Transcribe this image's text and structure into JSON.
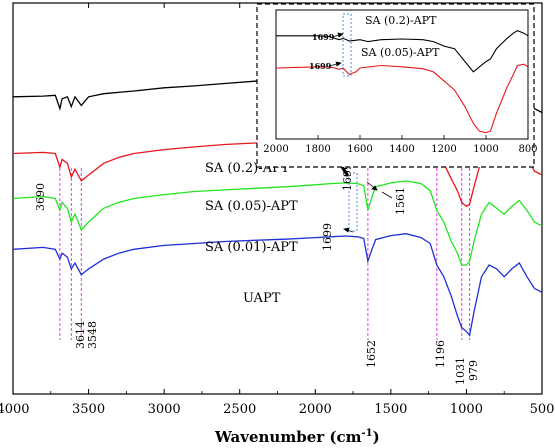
{
  "chart_data": [
    {
      "type": "line",
      "role": "main",
      "xlabel": "Wavenumber (cm⁻¹)",
      "xlim": [
        4000,
        500
      ],
      "xticks": [
        4000,
        3500,
        3000,
        2500,
        2000,
        1500,
        1000,
        500
      ],
      "yticks_shown": false,
      "series": [
        {
          "name": "SA (0.2)-APT",
          "color": "#000000",
          "points": [
            [
              4000,
              0.76
            ],
            [
              3800,
              0.762
            ],
            [
              3720,
              0.764
            ],
            [
              3690,
              0.73
            ],
            [
              3675,
              0.755
            ],
            [
              3640,
              0.76
            ],
            [
              3614,
              0.735
            ],
            [
              3590,
              0.76
            ],
            [
              3548,
              0.738
            ],
            [
              3500,
              0.76
            ],
            [
              3400,
              0.768
            ],
            [
              3200,
              0.775
            ],
            [
              3000,
              0.783
            ],
            [
              2800,
              0.788
            ],
            [
              2600,
              0.794
            ],
            [
              2400,
              0.8
            ],
            [
              2200,
              0.806
            ],
            [
              2000,
              0.815
            ],
            [
              1900,
              0.818
            ],
            [
              1800,
              0.82
            ],
            [
              1720,
              0.815
            ],
            [
              1699,
              0.795
            ],
            [
              1680,
              0.808
            ],
            [
              1652,
              0.79
            ],
            [
              1620,
              0.805
            ],
            [
              1561,
              0.79
            ],
            [
              1500,
              0.8
            ],
            [
              1400,
              0.812
            ],
            [
              1300,
              0.808
            ],
            [
              1240,
              0.8
            ],
            [
              1196,
              0.77
            ],
            [
              1150,
              0.755
            ],
            [
              1100,
              0.72
            ],
            [
              1060,
              0.69
            ],
            [
              1040,
              0.68
            ],
            [
              1031,
              0.685
            ],
            [
              1000,
              0.7
            ],
            [
              979,
              0.705
            ],
            [
              950,
              0.74
            ],
            [
              900,
              0.79
            ],
            [
              850,
              0.798
            ],
            [
              820,
              0.79
            ],
            [
              800,
              0.78
            ],
            [
              750,
              0.77
            ],
            [
              700,
              0.79
            ],
            [
              650,
              0.8
            ],
            [
              600,
              0.77
            ],
            [
              550,
              0.73
            ],
            [
              500,
              0.72
            ]
          ]
        },
        {
          "name": "SA (0.05)-APT",
          "color": "#e8171c",
          "points": [
            [
              4000,
              0.615
            ],
            [
              3800,
              0.618
            ],
            [
              3720,
              0.615
            ],
            [
              3690,
              0.58
            ],
            [
              3675,
              0.6
            ],
            [
              3640,
              0.59
            ],
            [
              3614,
              0.555
            ],
            [
              3590,
              0.575
            ],
            [
              3548,
              0.545
            ],
            [
              3500,
              0.56
            ],
            [
              3400,
              0.59
            ],
            [
              3300,
              0.605
            ],
            [
              3200,
              0.615
            ],
            [
              3000,
              0.625
            ],
            [
              2800,
              0.632
            ],
            [
              2600,
              0.638
            ],
            [
              2400,
              0.642
            ],
            [
              2200,
              0.648
            ],
            [
              2000,
              0.655
            ],
            [
              1900,
              0.66
            ],
            [
              1800,
              0.665
            ],
            [
              1720,
              0.662
            ],
            [
              1699,
              0.655
            ],
            [
              1680,
              0.66
            ],
            [
              1652,
              0.61
            ],
            [
              1620,
              0.64
            ],
            [
              1600,
              0.655
            ],
            [
              1500,
              0.665
            ],
            [
              1400,
              0.672
            ],
            [
              1300,
              0.668
            ],
            [
              1240,
              0.655
            ],
            [
              1196,
              0.61
            ],
            [
              1150,
              0.59
            ],
            [
              1100,
              0.55
            ],
            [
              1060,
              0.52
            ],
            [
              1031,
              0.49
            ],
            [
              1000,
              0.48
            ],
            [
              979,
              0.485
            ],
            [
              950,
              0.53
            ],
            [
              900,
              0.6
            ],
            [
              850,
              0.63
            ],
            [
              800,
              0.62
            ],
            [
              750,
              0.61
            ],
            [
              700,
              0.635
            ],
            [
              650,
              0.64
            ],
            [
              600,
              0.61
            ],
            [
              550,
              0.57
            ],
            [
              500,
              0.56
            ]
          ]
        },
        {
          "name": "SA (0.01)-APT",
          "color": "#22e61f",
          "points": [
            [
              4000,
              0.5
            ],
            [
              3800,
              0.505
            ],
            [
              3720,
              0.5
            ],
            [
              3690,
              0.47
            ],
            [
              3675,
              0.49
            ],
            [
              3640,
              0.475
            ],
            [
              3614,
              0.44
            ],
            [
              3590,
              0.46
            ],
            [
              3548,
              0.42
            ],
            [
              3500,
              0.44
            ],
            [
              3400,
              0.475
            ],
            [
              3300,
              0.49
            ],
            [
              3200,
              0.5
            ],
            [
              3000,
              0.51
            ],
            [
              2800,
              0.518
            ],
            [
              2600,
              0.522
            ],
            [
              2400,
              0.526
            ],
            [
              2200,
              0.53
            ],
            [
              2000,
              0.535
            ],
            [
              1900,
              0.538
            ],
            [
              1800,
              0.54
            ],
            [
              1720,
              0.538
            ],
            [
              1680,
              0.533
            ],
            [
              1652,
              0.47
            ],
            [
              1620,
              0.51
            ],
            [
              1600,
              0.53
            ],
            [
              1500,
              0.54
            ],
            [
              1400,
              0.545
            ],
            [
              1300,
              0.538
            ],
            [
              1240,
              0.52
            ],
            [
              1196,
              0.47
            ],
            [
              1150,
              0.44
            ],
            [
              1100,
              0.39
            ],
            [
              1060,
              0.36
            ],
            [
              1031,
              0.33
            ],
            [
              1000,
              0.33
            ],
            [
              979,
              0.34
            ],
            [
              950,
              0.39
            ],
            [
              900,
              0.46
            ],
            [
              850,
              0.49
            ],
            [
              800,
              0.475
            ],
            [
              750,
              0.46
            ],
            [
              700,
              0.48
            ],
            [
              650,
              0.495
            ],
            [
              600,
              0.47
            ],
            [
              550,
              0.44
            ],
            [
              500,
              0.43
            ]
          ]
        },
        {
          "name": "UAPT",
          "color": "#1f2fd6",
          "points": [
            [
              4000,
              0.37
            ],
            [
              3800,
              0.375
            ],
            [
              3720,
              0.37
            ],
            [
              3690,
              0.345
            ],
            [
              3675,
              0.36
            ],
            [
              3640,
              0.35
            ],
            [
              3614,
              0.32
            ],
            [
              3590,
              0.335
            ],
            [
              3548,
              0.305
            ],
            [
              3500,
              0.32
            ],
            [
              3400,
              0.345
            ],
            [
              3300,
              0.36
            ],
            [
              3200,
              0.37
            ],
            [
              3000,
              0.38
            ],
            [
              2800,
              0.385
            ],
            [
              2600,
              0.39
            ],
            [
              2400,
              0.393
            ],
            [
              2200,
              0.396
            ],
            [
              2000,
              0.4
            ],
            [
              1900,
              0.402
            ],
            [
              1800,
              0.404
            ],
            [
              1720,
              0.402
            ],
            [
              1680,
              0.398
            ],
            [
              1652,
              0.34
            ],
            [
              1620,
              0.375
            ],
            [
              1600,
              0.395
            ],
            [
              1500,
              0.405
            ],
            [
              1400,
              0.41
            ],
            [
              1300,
              0.4
            ],
            [
              1240,
              0.385
            ],
            [
              1196,
              0.33
            ],
            [
              1150,
              0.3
            ],
            [
              1100,
              0.25
            ],
            [
              1060,
              0.2
            ],
            [
              1031,
              0.17
            ],
            [
              1000,
              0.16
            ],
            [
              979,
              0.15
            ],
            [
              950,
              0.21
            ],
            [
              900,
              0.3
            ],
            [
              850,
              0.33
            ],
            [
              800,
              0.32
            ],
            [
              750,
              0.3
            ],
            [
              700,
              0.32
            ],
            [
              650,
              0.335
            ],
            [
              600,
              0.3
            ],
            [
              550,
              0.27
            ],
            [
              500,
              0.26
            ]
          ]
        }
      ],
      "reference_lines": [
        3690,
        3614,
        3548,
        1652,
        1196,
        1031,
        979
      ],
      "annotations": [
        "3690",
        "3614",
        "3548",
        "1699",
        "1699",
        "1561",
        "1652",
        "1196",
        "1031",
        "979"
      ]
    },
    {
      "type": "line",
      "role": "inset",
      "xlim": [
        2000,
        800
      ],
      "xticks": [
        2000,
        1800,
        1600,
        1400,
        1200,
        1000,
        800
      ],
      "series": [
        {
          "name": "SA (0.2)-APT",
          "color": "#000000",
          "points": [
            [
              2000,
              0.8
            ],
            [
              1900,
              0.8
            ],
            [
              1800,
              0.8
            ],
            [
              1750,
              0.795
            ],
            [
              1720,
              0.78
            ],
            [
              1699,
              0.77
            ],
            [
              1680,
              0.78
            ],
            [
              1650,
              0.76
            ],
            [
              1600,
              0.77
            ],
            [
              1561,
              0.755
            ],
            [
              1500,
              0.77
            ],
            [
              1400,
              0.775
            ],
            [
              1300,
              0.77
            ],
            [
              1250,
              0.755
            ],
            [
              1200,
              0.72
            ],
            [
              1150,
              0.7
            ],
            [
              1100,
              0.6
            ],
            [
              1060,
              0.52
            ],
            [
              1031,
              0.56
            ],
            [
              1000,
              0.6
            ],
            [
              979,
              0.62
            ],
            [
              950,
              0.7
            ],
            [
              900,
              0.78
            ],
            [
              870,
              0.82
            ],
            [
              850,
              0.84
            ],
            [
              820,
              0.82
            ],
            [
              800,
              0.8
            ]
          ]
        },
        {
          "name": "SA (0.05)-APT",
          "color": "#e8171c",
          "points": [
            [
              2000,
              0.55
            ],
            [
              1900,
              0.555
            ],
            [
              1800,
              0.56
            ],
            [
              1750,
              0.557
            ],
            [
              1720,
              0.55
            ],
            [
              1699,
              0.54
            ],
            [
              1680,
              0.55
            ],
            [
              1652,
              0.5
            ],
            [
              1620,
              0.52
            ],
            [
              1600,
              0.55
            ],
            [
              1500,
              0.57
            ],
            [
              1400,
              0.56
            ],
            [
              1300,
              0.545
            ],
            [
              1250,
              0.52
            ],
            [
              1200,
              0.45
            ],
            [
              1150,
              0.38
            ],
            [
              1100,
              0.25
            ],
            [
              1060,
              0.12
            ],
            [
              1031,
              0.06
            ],
            [
              1000,
              0.05
            ],
            [
              979,
              0.06
            ],
            [
              950,
              0.2
            ],
            [
              900,
              0.4
            ],
            [
              870,
              0.5
            ],
            [
              850,
              0.57
            ],
            [
              820,
              0.58
            ],
            [
              800,
              0.56
            ]
          ]
        }
      ],
      "annotations": [
        "1699",
        "1699"
      ]
    }
  ],
  "labels": {
    "series_sa02": "SA (0.2)-APT",
    "series_sa005": "SA (0.05)-APT",
    "series_sa001": "SA (0.01)-APT",
    "series_uapt": "UAPT",
    "inset_sa02": "SA (0.2)-APT",
    "inset_sa005": "SA (0.05)-APT",
    "peak_3690": "3690",
    "peak_3614": "3614",
    "peak_3548": "3548",
    "peak_1699_a": "1699",
    "peak_1699_b": "1699",
    "peak_1561": "1561",
    "peak_1652": "1652",
    "peak_1196": "1196",
    "peak_1031": "1031",
    "peak_979": "979",
    "inset_1699_a": "1699",
    "inset_1699_b": "1699",
    "xlabel_main": "Wavenumber (cm",
    "xlabel_sup": "-1",
    "xlabel_close": ")"
  }
}
